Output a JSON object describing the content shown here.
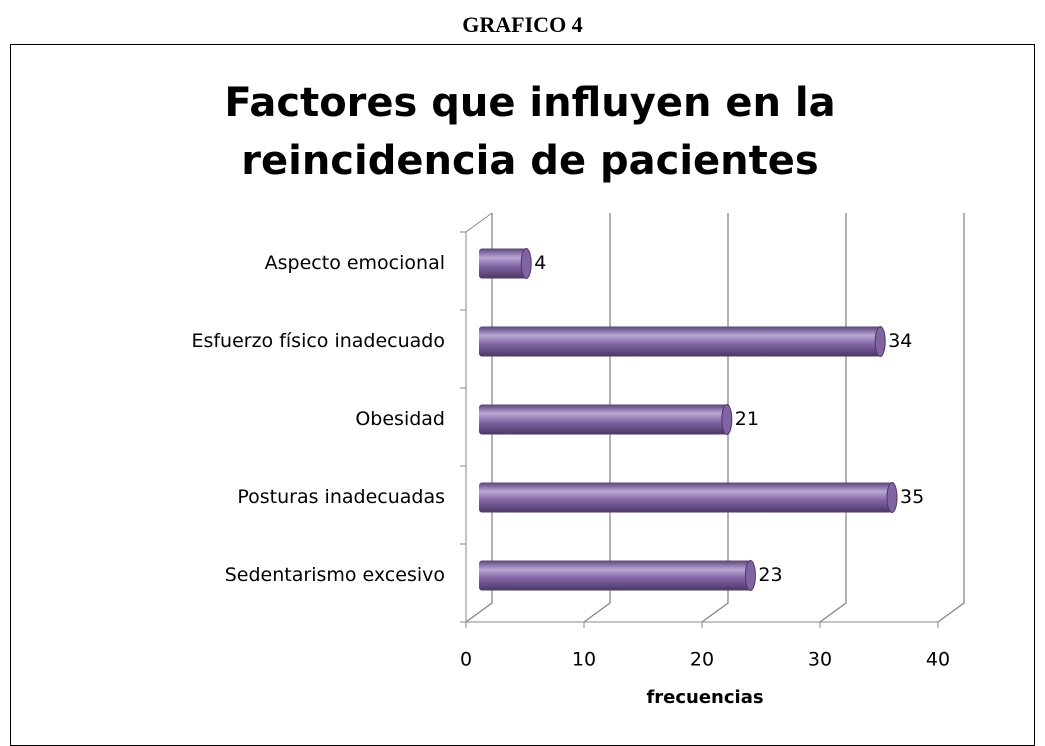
{
  "heading": "GRAFICO 4",
  "chart_data": {
    "type": "bar",
    "orientation": "horizontal",
    "title": "Factores que influyen en la reincidencia de pacientes",
    "x_label": "frecuencias",
    "categories": [
      "Aspecto emocional",
      "Esfuerzo físico inadecuado",
      "Obesidad",
      "Posturas inadecuadas",
      "Sedentarismo excesivo"
    ],
    "values": [
      4,
      34,
      21,
      35,
      23
    ],
    "color": "#8064a2",
    "xlim": [
      0,
      40
    ],
    "xticks": [
      0,
      10,
      20,
      30,
      40
    ],
    "grid": true
  }
}
